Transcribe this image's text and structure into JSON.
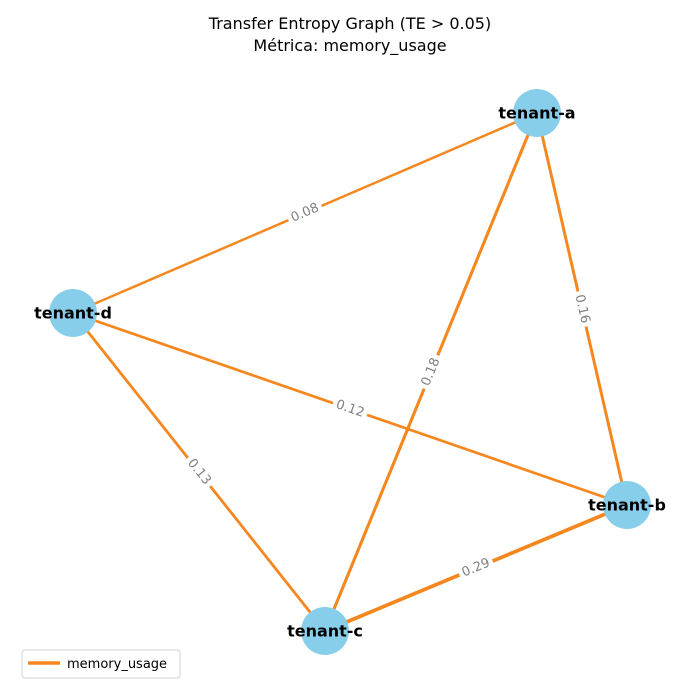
{
  "title": {
    "line1": "Transfer Entropy Graph (TE > 0.05)",
    "line2": "Métrica: memory_usage"
  },
  "colors": {
    "node_fill": "#87ceeb",
    "edge": "#f5871f",
    "edge_label": "#808080",
    "legend_border": "#d0d0d0"
  },
  "nodes": [
    {
      "id": "tenant-a",
      "label": "tenant-a"
    },
    {
      "id": "tenant-b",
      "label": "tenant-b"
    },
    {
      "id": "tenant-c",
      "label": "tenant-c"
    },
    {
      "id": "tenant-d",
      "label": "tenant-d"
    }
  ],
  "edges": [
    {
      "source": "tenant-d",
      "target": "tenant-a",
      "label": "0.08",
      "value": 0.08
    },
    {
      "source": "tenant-a",
      "target": "tenant-b",
      "label": "0.16",
      "value": 0.16
    },
    {
      "source": "tenant-a",
      "target": "tenant-c",
      "label": "0.18",
      "value": 0.18
    },
    {
      "source": "tenant-d",
      "target": "tenant-b",
      "label": "0.12",
      "value": 0.12
    },
    {
      "source": "tenant-d",
      "target": "tenant-c",
      "label": "0.13",
      "value": 0.13
    },
    {
      "source": "tenant-c",
      "target": "tenant-b",
      "label": "0.29",
      "value": 0.29
    }
  ],
  "legend": {
    "label": "memory_usage"
  }
}
